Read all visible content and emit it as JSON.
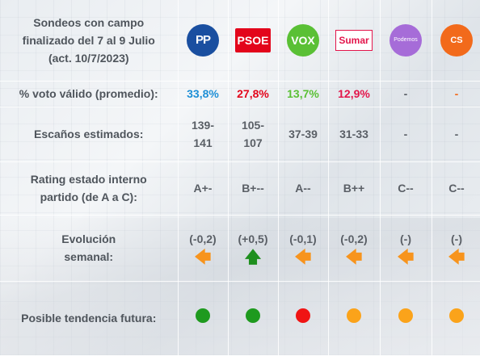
{
  "header": {
    "title": "Sondeos con campo\nfinalizado del 7 al 9 Julio\n(act. 10/7/2023)"
  },
  "parties": [
    {
      "name": "pp",
      "logo_text": "PP",
      "color": "#1a4fa0"
    },
    {
      "name": "psoe",
      "logo_text": "PSOE",
      "color": "#e3051b"
    },
    {
      "name": "vox",
      "logo_text": "VOX",
      "color": "#5ac035"
    },
    {
      "name": "sumar",
      "logo_text": "Sumar",
      "color": "#e3154b"
    },
    {
      "name": "podemos",
      "logo_text": "Podemos",
      "color": "#a66cd8"
    },
    {
      "name": "cs",
      "logo_text": "CS",
      "color": "#f26a1b"
    }
  ],
  "rows": {
    "vote": {
      "label": "% voto válido (promedio):",
      "values": [
        "33,8%",
        "27,8%",
        "13,7%",
        "12,9%",
        "-",
        "-"
      ],
      "colors": [
        "#1e8fd6",
        "#e3051b",
        "#5ac035",
        "#e3154b",
        "#5a5f66",
        "#f26a1b"
      ]
    },
    "seats": {
      "label": "Escaños estimados:",
      "values": [
        "139-\n141",
        "105-\n107",
        "37-39",
        "31-33",
        "-",
        "-"
      ]
    },
    "rating": {
      "label": "Rating estado interno\npartido (de A a C):",
      "values": [
        "A+-",
        "B+--",
        "A--",
        "B++",
        "C--",
        "C--"
      ]
    },
    "evolution": {
      "label": "Evolución\nsemanal:",
      "values": [
        "(-0,2)",
        "(+0,5)",
        "(-0,1)",
        "(-0,2)",
        "(-)",
        "(-)"
      ],
      "arrows": [
        "left-arrow",
        "up-arrow",
        "left-arrow",
        "left-arrow",
        "left-arrow",
        "left-arrow"
      ]
    },
    "trend": {
      "label": "Posible tendencia futura:",
      "dot_colors": [
        "#1e9a1e",
        "#1e9a1e",
        "#f01414",
        "#fba31a",
        "#fba31a",
        "#fba31a"
      ]
    }
  }
}
